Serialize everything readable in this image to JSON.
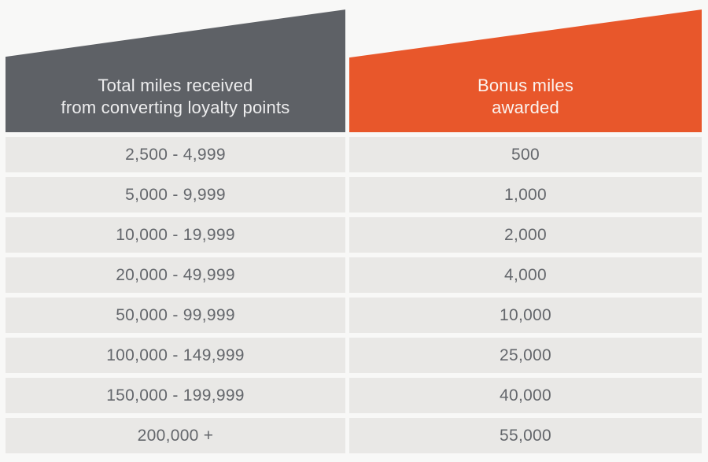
{
  "colors": {
    "page_bg": "#f8f8f7",
    "header_left_bg": "#5e6166",
    "header_right_bg": "#e8572b",
    "header_left_text": "#ededee",
    "header_right_text": "#fbf3ef",
    "row_bg": "#e9e8e6",
    "row_text": "#64676c"
  },
  "table": {
    "headers": [
      {
        "line1": "Total miles received",
        "line2": "from converting loyalty points"
      },
      {
        "line1": "Bonus miles",
        "line2": "awarded"
      }
    ],
    "rows": [
      {
        "miles": "2,500 - 4,999",
        "bonus": "500"
      },
      {
        "miles": "5,000 - 9,999",
        "bonus": "1,000"
      },
      {
        "miles": "10,000 - 19,999",
        "bonus": "2,000"
      },
      {
        "miles": "20,000 - 49,999",
        "bonus": "4,000"
      },
      {
        "miles": "50,000 - 99,999",
        "bonus": "10,000"
      },
      {
        "miles": "100,000 - 149,999",
        "bonus": "25,000"
      },
      {
        "miles": "150,000 - 199,999",
        "bonus": "40,000"
      },
      {
        "miles": "200,000 +",
        "bonus": "55,000"
      }
    ]
  },
  "chart_data": {
    "type": "table",
    "title": "",
    "columns": [
      "Total miles received from converting loyalty points",
      "Bonus miles awarded"
    ],
    "rows": [
      [
        "2,500 - 4,999",
        "500"
      ],
      [
        "5,000 - 9,999",
        "1,000"
      ],
      [
        "10,000 - 19,999",
        "2,000"
      ],
      [
        "20,000 - 49,999",
        "4,000"
      ],
      [
        "50,000 - 99,999",
        "10,000"
      ],
      [
        "100,000 - 149,999",
        "25,000"
      ],
      [
        "150,000 - 199,999",
        "40,000"
      ],
      [
        "200,000 +",
        "55,000"
      ]
    ],
    "layout_hints": {
      "header_style": "slanted-banner rising left-to-right",
      "left_header_color": "#5e6166",
      "right_header_color": "#e8572b",
      "row_striping": "uniform light gray rows separated by white gaps"
    }
  }
}
